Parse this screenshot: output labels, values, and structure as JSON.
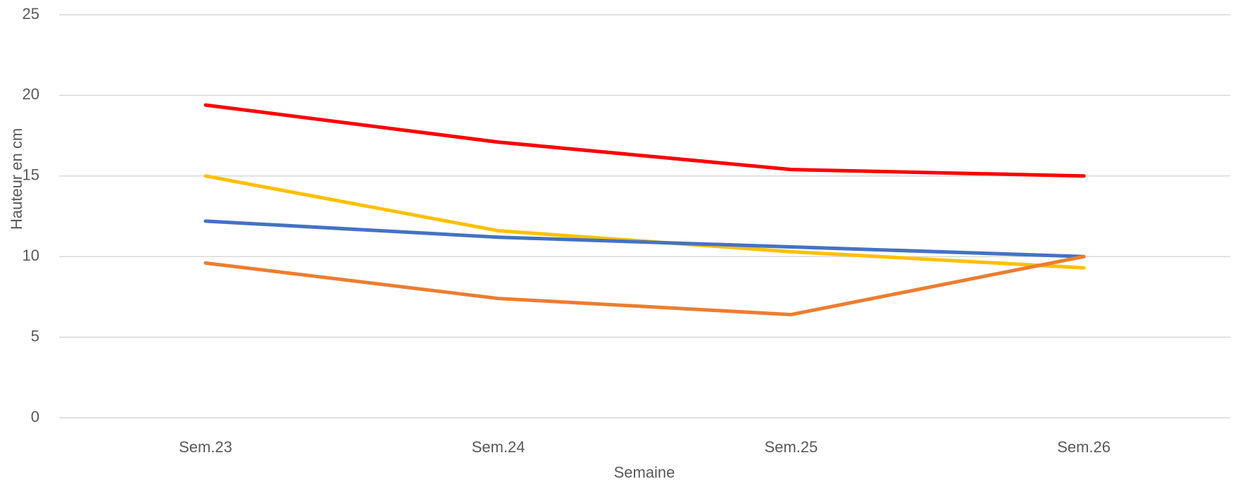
{
  "chart_data": {
    "type": "line",
    "x_label": "Semaine",
    "y_label": "Hauteur en cm",
    "categories": [
      "Sem.23",
      "Sem.24",
      "Sem.25",
      "Sem.26"
    ],
    "series": [
      {
        "color": "#ff0000",
        "values": [
          19.4,
          17.1,
          15.4,
          15.0
        ]
      },
      {
        "color": "#ffc000",
        "values": [
          15.0,
          11.6,
          10.3,
          9.3
        ]
      },
      {
        "color": "#4472c4",
        "values": [
          12.2,
          11.2,
          10.6,
          10.0
        ]
      },
      {
        "color": "#ed7d31",
        "values": [
          9.6,
          7.4,
          6.4,
          10.0
        ]
      }
    ],
    "ylim": [
      0,
      25
    ],
    "yticks": [
      0,
      5,
      10,
      15,
      20,
      25
    ],
    "grid": true
  }
}
